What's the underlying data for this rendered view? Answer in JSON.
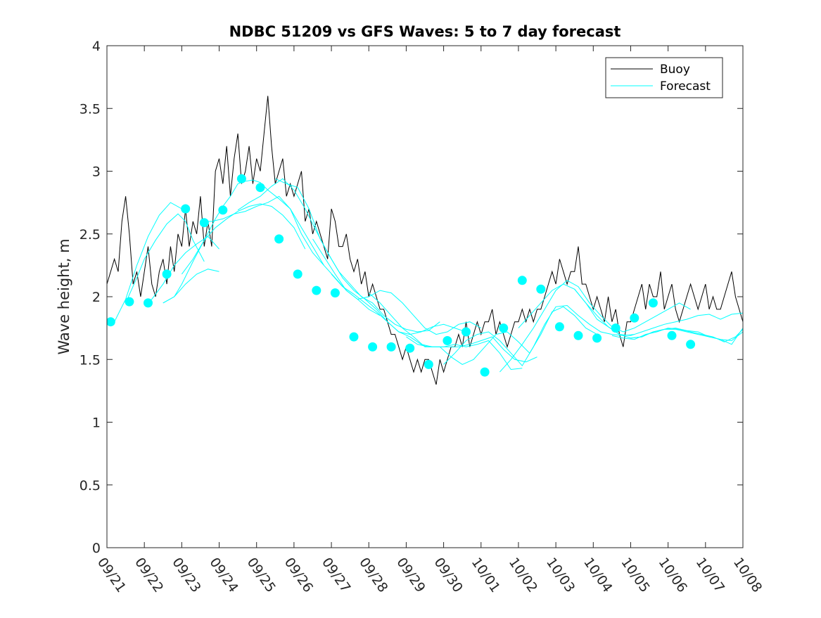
{
  "chart_data": {
    "type": "line",
    "title": "NDBC 51209 vs GFS Waves: 5 to 7 day forecast",
    "xlabel": "",
    "ylabel": "Wave height, m",
    "ylim": [
      0,
      4
    ],
    "yticks": [
      "0",
      "0.5",
      "1",
      "1.5",
      "2",
      "2.5",
      "3",
      "3.5",
      "4"
    ],
    "xlim": [
      0,
      17
    ],
    "xtick_labels": [
      "09/21",
      "09/22",
      "09/23",
      "09/24",
      "09/25",
      "09/26",
      "09/27",
      "09/28",
      "09/29",
      "09/30",
      "10/01",
      "10/02",
      "10/03",
      "10/04",
      "10/05",
      "10/06",
      "10/07",
      "10/08"
    ],
    "legend": {
      "position": "top-right",
      "entries": [
        "Buoy",
        "Forecast"
      ]
    },
    "colors": {
      "buoy": "#000000",
      "forecast": "#00ffff",
      "axes": "#262626"
    },
    "buoy": {
      "x": [
        0,
        0.1,
        0.2,
        0.3,
        0.4,
        0.5,
        0.6,
        0.7,
        0.8,
        0.9,
        1.0,
        1.1,
        1.2,
        1.3,
        1.4,
        1.5,
        1.6,
        1.7,
        1.8,
        1.9,
        2.0,
        2.1,
        2.2,
        2.3,
        2.4,
        2.5,
        2.6,
        2.7,
        2.8,
        2.9,
        3.0,
        3.1,
        3.2,
        3.3,
        3.4,
        3.5,
        3.6,
        3.7,
        3.8,
        3.9,
        4.0,
        4.1,
        4.2,
        4.3,
        4.4,
        4.5,
        4.6,
        4.7,
        4.8,
        4.9,
        5.0,
        5.1,
        5.2,
        5.3,
        5.4,
        5.5,
        5.6,
        5.7,
        5.8,
        5.9,
        6.0,
        6.1,
        6.2,
        6.3,
        6.4,
        6.5,
        6.6,
        6.7,
        6.8,
        6.9,
        7.0,
        7.1,
        7.2,
        7.3,
        7.4,
        7.5,
        7.6,
        7.7,
        7.8,
        7.9,
        8.0,
        8.1,
        8.2,
        8.3,
        8.4,
        8.5,
        8.6,
        8.7,
        8.8,
        8.9,
        9.0,
        9.1,
        9.2,
        9.3,
        9.4,
        9.5,
        9.6,
        9.7,
        9.8,
        9.9,
        10.0,
        10.1,
        10.2,
        10.3,
        10.4,
        10.5,
        10.6,
        10.7,
        10.8,
        10.9,
        11.0,
        11.1,
        11.2,
        11.3,
        11.4,
        11.5,
        11.6,
        11.7,
        11.8,
        11.9,
        12.0,
        12.1,
        12.2,
        12.3,
        12.4,
        12.5,
        12.6,
        12.7,
        12.8,
        12.9,
        13.0,
        13.1,
        13.2,
        13.3,
        13.4,
        13.5,
        13.6,
        13.7,
        13.8,
        13.9,
        14.0,
        14.1,
        14.2,
        14.3,
        14.4,
        14.5,
        14.6,
        14.7,
        14.8,
        14.9,
        15.0,
        15.1,
        15.2,
        15.3,
        15.4,
        15.5,
        15.6,
        15.7,
        15.8,
        15.9,
        16.0,
        16.1,
        16.2,
        16.3,
        16.4,
        16.5,
        16.6,
        16.7,
        16.8,
        16.9,
        17.0
      ],
      "y": [
        2.1,
        2.2,
        2.3,
        2.2,
        2.6,
        2.8,
        2.5,
        2.1,
        2.2,
        2.0,
        2.2,
        2.4,
        2.1,
        2.0,
        2.2,
        2.3,
        2.1,
        2.4,
        2.2,
        2.5,
        2.4,
        2.7,
        2.4,
        2.6,
        2.5,
        2.8,
        2.4,
        2.6,
        2.4,
        3.0,
        3.1,
        2.9,
        3.2,
        2.8,
        3.1,
        3.3,
        2.9,
        3.0,
        3.2,
        2.9,
        3.1,
        3.0,
        3.3,
        3.6,
        3.2,
        2.9,
        3.0,
        3.1,
        2.8,
        2.9,
        2.8,
        2.9,
        3.0,
        2.6,
        2.7,
        2.5,
        2.6,
        2.5,
        2.4,
        2.3,
        2.7,
        2.6,
        2.4,
        2.4,
        2.5,
        2.3,
        2.2,
        2.3,
        2.1,
        2.2,
        2.0,
        2.1,
        2.0,
        1.9,
        1.9,
        1.8,
        1.7,
        1.7,
        1.6,
        1.5,
        1.6,
        1.5,
        1.4,
        1.5,
        1.4,
        1.5,
        1.5,
        1.4,
        1.3,
        1.5,
        1.4,
        1.5,
        1.6,
        1.6,
        1.7,
        1.6,
        1.8,
        1.6,
        1.7,
        1.8,
        1.7,
        1.8,
        1.8,
        1.9,
        1.7,
        1.8,
        1.7,
        1.6,
        1.7,
        1.8,
        1.8,
        1.9,
        1.8,
        1.9,
        1.8,
        1.9,
        1.9,
        2.0,
        2.1,
        2.2,
        2.1,
        2.3,
        2.2,
        2.1,
        2.2,
        2.2,
        2.4,
        2.1,
        2.1,
        2.0,
        1.9,
        2.0,
        1.9,
        1.8,
        2.0,
        1.8,
        1.9,
        1.7,
        1.6,
        1.8,
        1.8,
        1.9,
        2.0,
        2.1,
        1.9,
        2.1,
        2.0,
        2.0,
        2.2,
        1.9,
        2.0,
        2.1,
        1.9,
        1.8,
        1.9,
        2.0,
        2.1,
        2.0,
        1.9,
        2.0,
        2.1,
        1.9,
        2.0,
        1.9,
        1.9,
        2.0,
        2.1,
        2.2,
        2.0,
        1.9,
        1.8
      ]
    },
    "forecast_series": [
      {
        "x": [
          0.0,
          0.2,
          0.5,
          0.8,
          1.1,
          1.4,
          1.7,
          2.0
        ],
        "y": [
          1.78,
          1.8,
          1.98,
          2.25,
          2.48,
          2.65,
          2.75,
          2.7
        ]
      },
      {
        "x": [
          0.5,
          0.8,
          1.0,
          1.3,
          1.6,
          1.9,
          2.1,
          2.3,
          2.6
        ],
        "y": [
          1.95,
          2.15,
          2.3,
          2.45,
          2.58,
          2.66,
          2.6,
          2.45,
          2.28
        ]
      },
      {
        "x": [
          1.0,
          1.2,
          1.5,
          1.8,
          2.1,
          2.4,
          2.7,
          3.0
        ],
        "y": [
          1.95,
          1.98,
          2.1,
          2.25,
          2.35,
          2.42,
          2.48,
          2.38
        ]
      },
      {
        "x": [
          1.5,
          1.8,
          2.0,
          2.3,
          2.6,
          2.9,
          3.1,
          3.3,
          3.5,
          3.7,
          3.9,
          4.1,
          4.3,
          4.6,
          4.9,
          5.2,
          5.5,
          5.8
        ],
        "y": [
          1.95,
          2.0,
          2.1,
          2.28,
          2.45,
          2.62,
          2.72,
          2.8,
          2.9,
          2.92,
          2.93,
          2.91,
          2.85,
          2.78,
          2.7,
          2.55,
          2.4,
          2.25
        ]
      },
      {
        "x": [
          1.5,
          1.8,
          2.1,
          2.4,
          2.7,
          3.0
        ],
        "y": [
          1.95,
          2.0,
          2.1,
          2.18,
          2.22,
          2.2
        ]
      },
      {
        "x": [
          2.0,
          2.3,
          2.6,
          2.9,
          3.2,
          3.5,
          3.8,
          4.1,
          4.4,
          4.7,
          5.0,
          5.3
        ],
        "y": [
          2.18,
          2.3,
          2.45,
          2.55,
          2.62,
          2.68,
          2.72,
          2.74,
          2.72,
          2.65,
          2.55,
          2.38
        ]
      },
      {
        "x": [
          2.5,
          2.8,
          3.1,
          3.4,
          3.7,
          4.0,
          4.3,
          4.6,
          4.9,
          5.2,
          5.5,
          5.8,
          6.1,
          6.4,
          6.7,
          7.0,
          7.3
        ],
        "y": [
          2.6,
          2.6,
          2.62,
          2.66,
          2.68,
          2.72,
          2.75,
          2.8,
          2.7,
          2.5,
          2.35,
          2.25,
          2.15,
          2.05,
          1.98,
          1.9,
          1.85
        ]
      },
      {
        "x": [
          3.5,
          3.8,
          4.1,
          4.4,
          4.7,
          5.0,
          5.3,
          5.6,
          5.9,
          6.2,
          6.5,
          6.8,
          7.1,
          7.4,
          7.7,
          8.0,
          8.3,
          8.6,
          8.9
        ],
        "y": [
          2.69,
          2.75,
          2.8,
          2.88,
          2.94,
          2.85,
          2.7,
          2.52,
          2.35,
          2.2,
          2.1,
          2.0,
          1.95,
          1.85,
          1.78,
          1.74,
          1.72,
          1.73,
          1.8
        ]
      },
      {
        "x": [
          4.5,
          4.8,
          5.1,
          5.4,
          5.7,
          6.0,
          6.3,
          6.6,
          6.9,
          7.2,
          7.5,
          7.8,
          8.1,
          8.4,
          8.7,
          9.0,
          9.3,
          9.6
        ],
        "y": [
          2.94,
          2.9,
          2.87,
          2.7,
          2.46,
          2.3,
          2.15,
          2.05,
          1.98,
          1.9,
          1.8,
          1.72,
          1.7,
          1.72,
          1.76,
          1.78,
          1.75,
          1.72
        ]
      },
      {
        "x": [
          5.5,
          5.8,
          6.1,
          6.4,
          6.7,
          7.0,
          7.3,
          7.6,
          7.9,
          8.2,
          8.5,
          8.8,
          9.1,
          9.4,
          9.7,
          10.0
        ],
        "y": [
          2.46,
          2.32,
          2.18,
          2.05,
          1.98,
          2.0,
          2.05,
          2.03,
          1.95,
          1.85,
          1.75,
          1.7,
          1.72,
          1.78,
          1.8,
          1.75
        ]
      },
      {
        "x": [
          6.0,
          6.3,
          6.6,
          6.9,
          7.2,
          7.5,
          7.8,
          8.1,
          8.4,
          8.7,
          9.0,
          9.3,
          9.6,
          9.9,
          10.2,
          10.5,
          10.8,
          11.1
        ],
        "y": [
          2.18,
          2.08,
          2.02,
          1.95,
          1.88,
          1.8,
          1.72,
          1.68,
          1.62,
          1.6,
          1.6,
          1.62,
          1.6,
          1.62,
          1.65,
          1.55,
          1.42,
          1.43
        ]
      },
      {
        "x": [
          7.0,
          7.3,
          7.6,
          7.9,
          8.2,
          8.5,
          8.8,
          9.1,
          9.4,
          9.7,
          10.0,
          10.3,
          10.6,
          10.9,
          11.2,
          11.5
        ],
        "y": [
          2.03,
          1.95,
          1.85,
          1.75,
          1.68,
          1.6,
          1.6,
          1.6,
          1.6,
          1.62,
          1.65,
          1.68,
          1.58,
          1.5,
          1.48,
          1.52
        ]
      },
      {
        "x": [
          8.0,
          8.3,
          8.6,
          8.9,
          9.2,
          9.5,
          9.8,
          10.1,
          10.4,
          10.7,
          11.0,
          11.3,
          11.6,
          11.9,
          12.2,
          12.5,
          12.8,
          13.1
        ],
        "y": [
          1.68,
          1.62,
          1.6,
          1.6,
          1.52,
          1.46,
          1.5,
          1.6,
          1.7,
          1.72,
          1.64,
          1.55,
          1.7,
          1.88,
          1.92,
          1.85,
          1.75,
          1.7
        ]
      },
      {
        "x": [
          9.0,
          9.3,
          9.6,
          9.9,
          10.2,
          10.5,
          10.8,
          11.1,
          11.4,
          11.7,
          12.0,
          12.3,
          12.6,
          12.9,
          13.2,
          13.5,
          13.8,
          14.1
        ],
        "y": [
          1.46,
          1.55,
          1.65,
          1.7,
          1.72,
          1.65,
          1.55,
          1.45,
          1.6,
          1.78,
          1.92,
          1.93,
          1.85,
          1.78,
          1.72,
          1.7,
          1.69,
          1.7
        ]
      },
      {
        "x": [
          10.5,
          10.8,
          11.1,
          11.4,
          11.7,
          12.0,
          12.3,
          12.6,
          12.9,
          13.2,
          13.5,
          13.8,
          14.1,
          14.4,
          14.7,
          15.0,
          15.3,
          15.6
        ],
        "y": [
          1.4,
          1.5,
          1.62,
          1.75,
          1.9,
          2.05,
          2.13,
          2.08,
          1.95,
          1.85,
          1.76,
          1.72,
          1.75,
          1.8,
          1.85,
          1.9,
          1.95,
          1.9
        ]
      },
      {
        "x": [
          11.0,
          11.3,
          11.6,
          11.9,
          12.2,
          12.5,
          12.8,
          13.1,
          13.4,
          13.7,
          14.0,
          14.3,
          14.6,
          14.9,
          15.2,
          15.5,
          15.8,
          16.1,
          16.4,
          16.7,
          17.0
        ],
        "y": [
          1.75,
          1.85,
          1.95,
          2.05,
          2.1,
          2.06,
          1.95,
          1.85,
          1.76,
          1.7,
          1.69,
          1.72,
          1.75,
          1.78,
          1.8,
          1.82,
          1.85,
          1.86,
          1.82,
          1.86,
          1.87
        ]
      },
      {
        "x": [
          12.5,
          12.8,
          13.1,
          13.4,
          13.7,
          14.0,
          14.3,
          14.6,
          14.9,
          15.2,
          15.5,
          15.8,
          16.1,
          16.4,
          16.7,
          17.0
        ],
        "y": [
          2.06,
          1.95,
          1.82,
          1.76,
          1.7,
          1.67,
          1.68,
          1.72,
          1.74,
          1.75,
          1.73,
          1.72,
          1.68,
          1.66,
          1.62,
          1.75
        ]
      },
      {
        "x": [
          13.5,
          13.8,
          14.1,
          14.4,
          14.7,
          15.0,
          15.3,
          15.6,
          15.9,
          16.2,
          16.5,
          16.8,
          17.0
        ],
        "y": [
          1.69,
          1.67,
          1.66,
          1.7,
          1.72,
          1.75,
          1.74,
          1.72,
          1.7,
          1.68,
          1.64,
          1.68,
          1.74
        ]
      },
      {
        "x": [
          14.0,
          14.3,
          14.6,
          14.9,
          15.2,
          15.5,
          15.8,
          16.1,
          16.4,
          16.7,
          17.0
        ],
        "y": [
          1.67,
          1.68,
          1.72,
          1.74,
          1.74,
          1.72,
          1.7,
          1.68,
          1.66,
          1.65,
          1.72
        ]
      }
    ],
    "forecast_markers": {
      "x": [
        0.1,
        0.6,
        1.1,
        1.6,
        2.1,
        2.6,
        3.1,
        3.6,
        4.1,
        4.6,
        5.1,
        5.6,
        6.1,
        6.6,
        7.1,
        7.6,
        8.1,
        8.6,
        9.1,
        9.6,
        10.1,
        10.6,
        11.1,
        11.6,
        12.1,
        12.6,
        13.1,
        13.6,
        14.1,
        14.6,
        15.1,
        15.6
      ],
      "y": [
        1.8,
        1.96,
        1.95,
        2.18,
        2.7,
        2.59,
        2.69,
        2.94,
        2.87,
        2.46,
        2.18,
        2.05,
        2.03,
        1.68,
        1.6,
        1.6,
        1.59,
        1.46,
        1.65,
        1.72,
        1.4,
        1.75,
        2.13,
        2.06,
        1.76,
        1.69,
        1.67,
        1.75,
        1.83,
        1.95,
        1.69,
        1.62
      ]
    }
  }
}
